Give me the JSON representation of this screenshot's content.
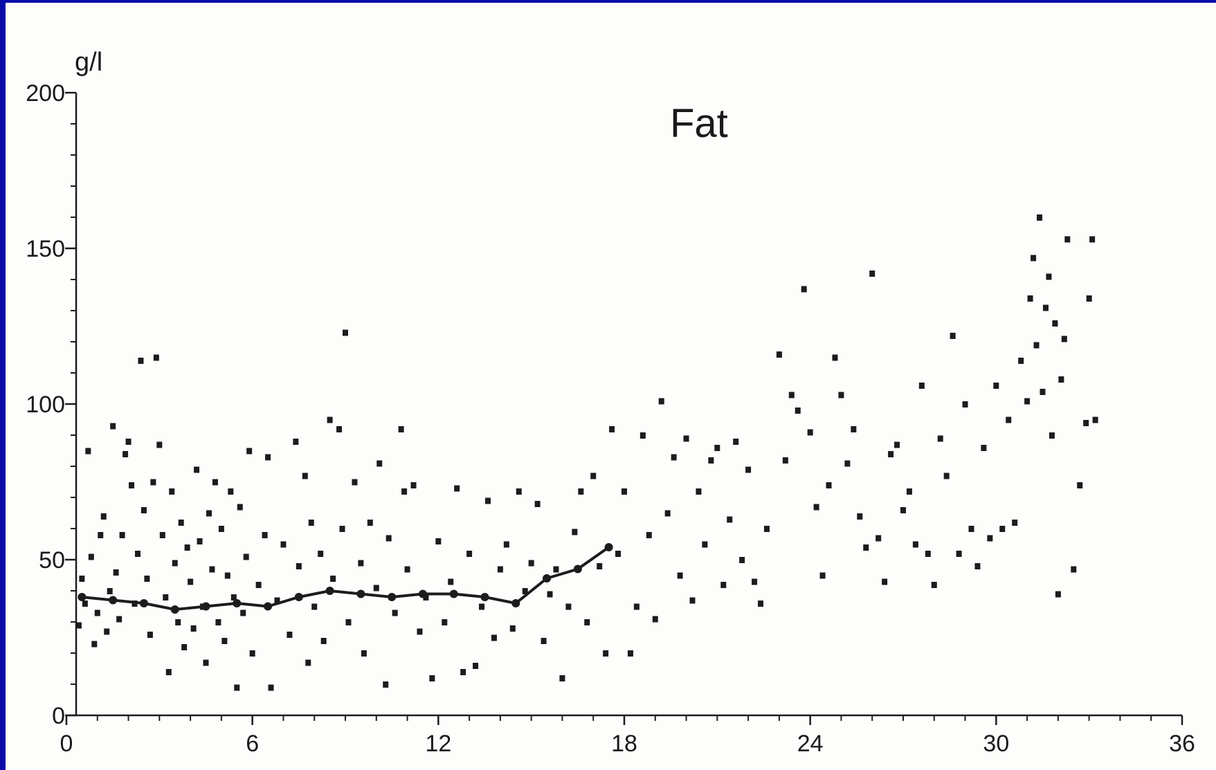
{
  "chart_data": {
    "type": "scatter",
    "title": "Fat",
    "ylabel": "g/l",
    "xlabel": "",
    "xlim": [
      0,
      36
    ],
    "ylim": [
      0,
      200
    ],
    "x_ticks": [
      0,
      6,
      12,
      18,
      24,
      30,
      36
    ],
    "y_ticks": [
      0,
      50,
      100,
      150,
      200
    ],
    "grid": false,
    "colors": {
      "points": "#1c1c1c",
      "line": "#1c1c1c",
      "border": "#0a0aa8",
      "background": "#fdfdfb"
    },
    "series": [
      {
        "kind": "scatter",
        "points": [
          [
            0.4,
            29
          ],
          [
            0.5,
            44
          ],
          [
            0.6,
            36
          ],
          [
            0.7,
            85
          ],
          [
            0.8,
            51
          ],
          [
            0.9,
            23
          ],
          [
            1.0,
            33
          ],
          [
            1.1,
            58
          ],
          [
            1.2,
            64
          ],
          [
            1.3,
            27
          ],
          [
            1.4,
            40
          ],
          [
            1.5,
            93
          ],
          [
            1.6,
            46
          ],
          [
            1.7,
            31
          ],
          [
            1.8,
            58
          ],
          [
            1.9,
            84
          ],
          [
            2.0,
            88
          ],
          [
            2.1,
            74
          ],
          [
            2.2,
            36
          ],
          [
            2.3,
            52
          ],
          [
            2.4,
            114
          ],
          [
            2.5,
            66
          ],
          [
            2.6,
            44
          ],
          [
            2.7,
            26
          ],
          [
            2.8,
            75
          ],
          [
            2.9,
            115
          ],
          [
            3.0,
            87
          ],
          [
            3.1,
            58
          ],
          [
            3.2,
            38
          ],
          [
            3.3,
            14
          ],
          [
            3.4,
            72
          ],
          [
            3.5,
            49
          ],
          [
            3.6,
            30
          ],
          [
            3.7,
            62
          ],
          [
            3.8,
            22
          ],
          [
            3.9,
            54
          ],
          [
            4.0,
            43
          ],
          [
            4.1,
            28
          ],
          [
            4.2,
            79
          ],
          [
            4.3,
            56
          ],
          [
            4.4,
            35
          ],
          [
            4.5,
            17
          ],
          [
            4.6,
            65
          ],
          [
            4.7,
            47
          ],
          [
            4.8,
            75
          ],
          [
            4.9,
            30
          ],
          [
            5.0,
            60
          ],
          [
            5.1,
            24
          ],
          [
            5.2,
            45
          ],
          [
            5.3,
            72
          ],
          [
            5.4,
            38
          ],
          [
            5.5,
            9
          ],
          [
            5.6,
            67
          ],
          [
            5.7,
            33
          ],
          [
            5.8,
            51
          ],
          [
            5.9,
            85
          ],
          [
            6.0,
            20
          ],
          [
            6.2,
            42
          ],
          [
            6.4,
            58
          ],
          [
            6.5,
            83
          ],
          [
            6.6,
            9
          ],
          [
            6.8,
            37
          ],
          [
            7.0,
            55
          ],
          [
            7.2,
            26
          ],
          [
            7.4,
            88
          ],
          [
            7.5,
            48
          ],
          [
            7.7,
            77
          ],
          [
            7.8,
            17
          ],
          [
            7.9,
            62
          ],
          [
            8.0,
            35
          ],
          [
            8.2,
            52
          ],
          [
            8.3,
            24
          ],
          [
            8.5,
            95
          ],
          [
            8.6,
            44
          ],
          [
            8.8,
            92
          ],
          [
            8.9,
            60
          ],
          [
            9.0,
            123
          ],
          [
            9.1,
            30
          ],
          [
            9.3,
            75
          ],
          [
            9.5,
            49
          ],
          [
            9.6,
            20
          ],
          [
            9.8,
            62
          ],
          [
            10.0,
            41
          ],
          [
            10.1,
            81
          ],
          [
            10.3,
            10
          ],
          [
            10.4,
            57
          ],
          [
            10.6,
            33
          ],
          [
            10.8,
            92
          ],
          [
            10.9,
            72
          ],
          [
            11.0,
            47
          ],
          [
            11.2,
            74
          ],
          [
            11.4,
            27
          ],
          [
            11.6,
            38
          ],
          [
            11.8,
            12
          ],
          [
            12.0,
            56
          ],
          [
            12.2,
            30
          ],
          [
            12.4,
            43
          ],
          [
            12.6,
            73
          ],
          [
            12.8,
            14
          ],
          [
            13.0,
            52
          ],
          [
            13.2,
            16
          ],
          [
            13.4,
            35
          ],
          [
            13.6,
            69
          ],
          [
            13.8,
            25
          ],
          [
            14.0,
            47
          ],
          [
            14.2,
            55
          ],
          [
            14.4,
            28
          ],
          [
            14.6,
            72
          ],
          [
            14.8,
            40
          ],
          [
            15.0,
            49
          ],
          [
            15.2,
            68
          ],
          [
            15.4,
            24
          ],
          [
            15.6,
            39
          ],
          [
            15.8,
            47
          ],
          [
            16.0,
            12
          ],
          [
            16.2,
            35
          ],
          [
            16.4,
            59
          ],
          [
            16.6,
            72
          ],
          [
            16.8,
            30
          ],
          [
            17.0,
            77
          ],
          [
            17.2,
            48
          ],
          [
            17.4,
            20
          ],
          [
            17.6,
            92
          ],
          [
            17.8,
            52
          ],
          [
            18.0,
            72
          ],
          [
            18.2,
            20
          ],
          [
            18.4,
            35
          ],
          [
            18.6,
            90
          ],
          [
            18.8,
            58
          ],
          [
            19.0,
            31
          ],
          [
            19.2,
            101
          ],
          [
            19.4,
            65
          ],
          [
            19.6,
            83
          ],
          [
            19.8,
            45
          ],
          [
            20.0,
            89
          ],
          [
            20.2,
            37
          ],
          [
            20.4,
            72
          ],
          [
            20.6,
            55
          ],
          [
            20.8,
            82
          ],
          [
            21.0,
            86
          ],
          [
            21.2,
            42
          ],
          [
            21.4,
            63
          ],
          [
            21.6,
            88
          ],
          [
            21.8,
            50
          ],
          [
            22.0,
            79
          ],
          [
            22.2,
            43
          ],
          [
            22.4,
            36
          ],
          [
            22.6,
            60
          ],
          [
            23.0,
            116
          ],
          [
            23.2,
            82
          ],
          [
            23.4,
            103
          ],
          [
            23.6,
            98
          ],
          [
            23.8,
            137
          ],
          [
            24.0,
            91
          ],
          [
            24.2,
            67
          ],
          [
            24.4,
            45
          ],
          [
            24.6,
            74
          ],
          [
            24.8,
            115
          ],
          [
            25.0,
            103
          ],
          [
            25.2,
            81
          ],
          [
            25.4,
            92
          ],
          [
            25.6,
            64
          ],
          [
            25.8,
            54
          ],
          [
            26.0,
            142
          ],
          [
            26.2,
            57
          ],
          [
            26.4,
            43
          ],
          [
            26.6,
            84
          ],
          [
            26.8,
            87
          ],
          [
            27.0,
            66
          ],
          [
            27.2,
            72
          ],
          [
            27.4,
            55
          ],
          [
            27.6,
            106
          ],
          [
            27.8,
            52
          ],
          [
            28.0,
            42
          ],
          [
            28.2,
            89
          ],
          [
            28.4,
            77
          ],
          [
            28.6,
            122
          ],
          [
            28.8,
            52
          ],
          [
            29.0,
            100
          ],
          [
            29.2,
            60
          ],
          [
            29.4,
            48
          ],
          [
            29.6,
            86
          ],
          [
            29.8,
            57
          ],
          [
            30.0,
            106
          ],
          [
            30.2,
            60
          ],
          [
            30.4,
            95
          ],
          [
            30.6,
            62
          ],
          [
            30.8,
            114
          ],
          [
            31.0,
            101
          ],
          [
            31.1,
            134
          ],
          [
            31.2,
            147
          ],
          [
            31.3,
            119
          ],
          [
            31.4,
            160
          ],
          [
            31.5,
            104
          ],
          [
            31.6,
            131
          ],
          [
            31.7,
            141
          ],
          [
            31.8,
            90
          ],
          [
            31.9,
            126
          ],
          [
            32.0,
            39
          ],
          [
            32.1,
            108
          ],
          [
            32.2,
            121
          ],
          [
            32.3,
            153
          ],
          [
            32.5,
            47
          ],
          [
            32.7,
            74
          ],
          [
            32.9,
            94
          ],
          [
            33.0,
            134
          ],
          [
            33.1,
            153
          ],
          [
            33.2,
            95
          ]
        ]
      },
      {
        "kind": "line",
        "points": [
          [
            0.5,
            38
          ],
          [
            1.5,
            37
          ],
          [
            2.5,
            36
          ],
          [
            3.5,
            34
          ],
          [
            4.5,
            35
          ],
          [
            5.5,
            36
          ],
          [
            6.5,
            35
          ],
          [
            7.5,
            38
          ],
          [
            8.5,
            40
          ],
          [
            9.5,
            39
          ],
          [
            10.5,
            38
          ],
          [
            11.5,
            39
          ],
          [
            12.5,
            39
          ],
          [
            13.5,
            38
          ],
          [
            14.5,
            36
          ],
          [
            15.5,
            44
          ],
          [
            16.5,
            47
          ],
          [
            17.5,
            54
          ]
        ]
      }
    ]
  }
}
